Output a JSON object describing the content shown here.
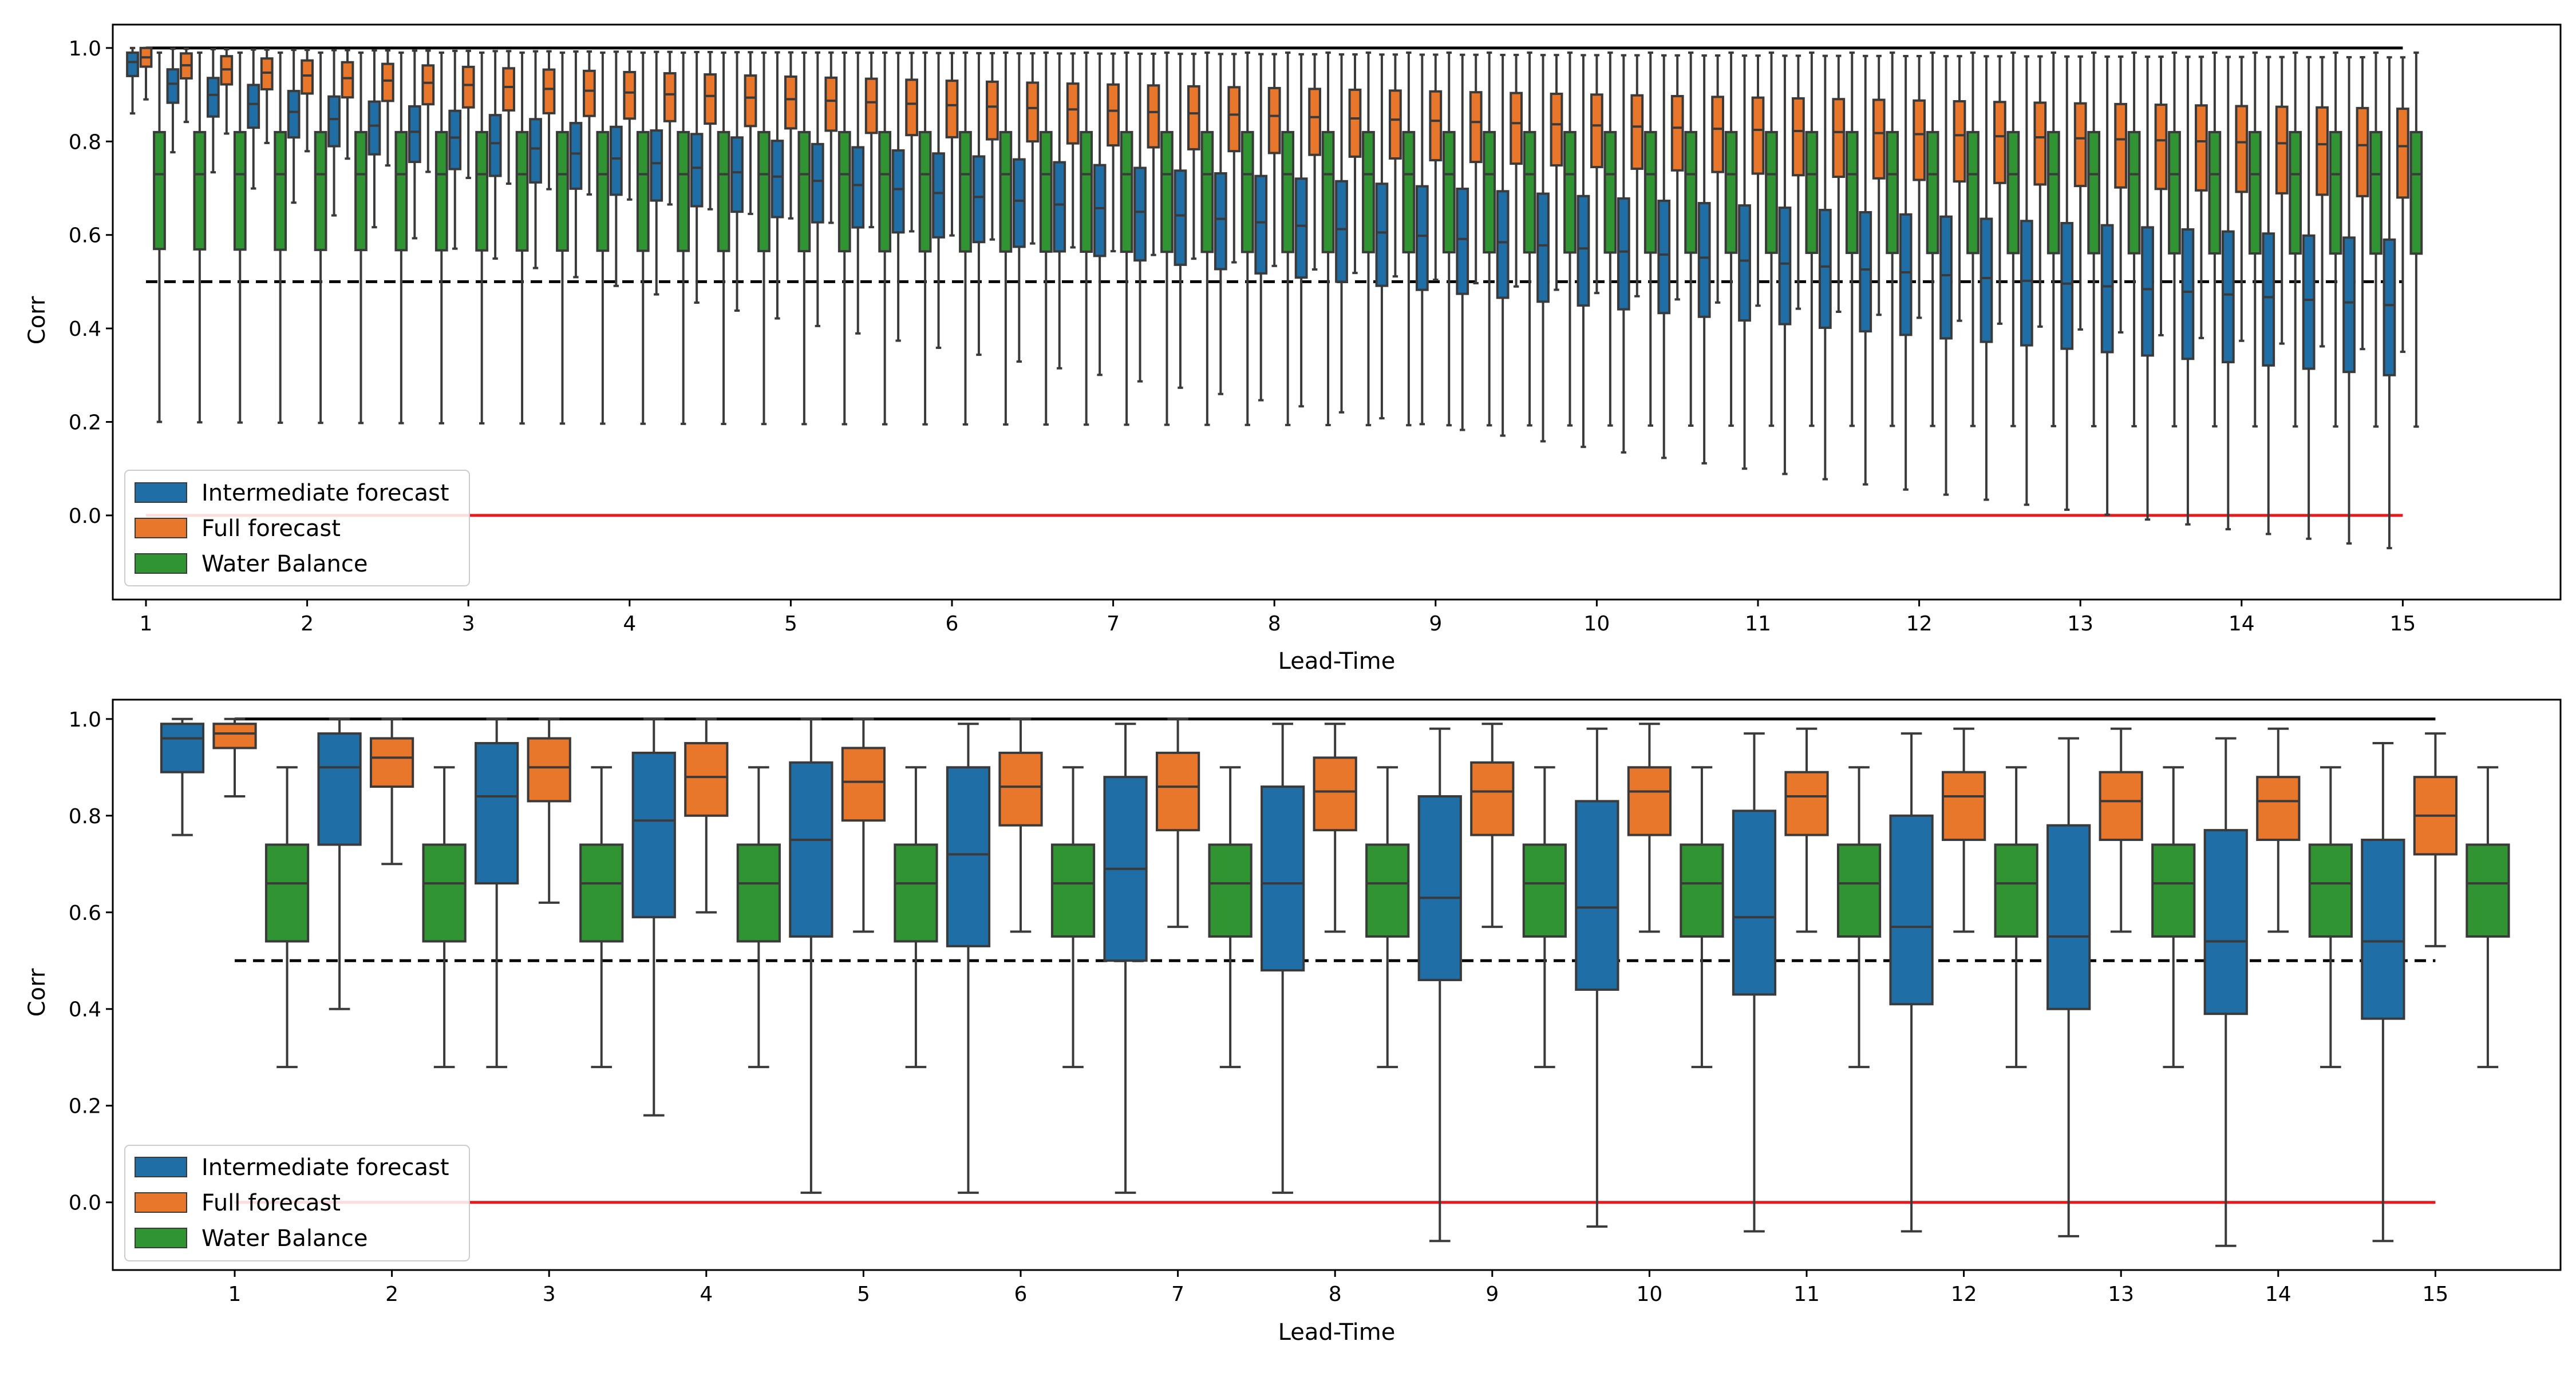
{
  "colors": {
    "intermediate": "#1f6ea6",
    "full": "#e8762b",
    "water": "#2f9431",
    "reference_line": "#000000",
    "zero_line": "#e8191b",
    "box_edge": "#3a3a3a"
  },
  "chart_data": [
    {
      "type": "box",
      "xlabel": "Lead-Time",
      "ylabel": "Corr",
      "ylim": [
        -0.18,
        1.05
      ],
      "yticks": [
        "0.0",
        "0.2",
        "0.4",
        "0.6",
        "0.8",
        "1.0"
      ],
      "xtick_labels": [
        "1",
        "2",
        "3",
        "4",
        "5",
        "6",
        "7",
        "8",
        "9",
        "10",
        "11",
        "12",
        "13",
        "14",
        "15"
      ],
      "groups_per_lead_time": 4,
      "n_groups": 57,
      "reference_lines": {
        "upper": 1.0,
        "dashed": 0.5,
        "zero": 0.0
      },
      "legend": {
        "placement": "lower-left",
        "entries": [
          "Intermediate forecast",
          "Full forecast",
          "Water Balance"
        ]
      },
      "series": [
        {
          "name": "Intermediate forecast",
          "key": "intermediate",
          "q1_trend": [
            0.94,
            0.3
          ],
          "median_trend": [
            0.97,
            0.45
          ],
          "q3_trend": [
            0.99,
            0.59
          ],
          "lower_whisker_trend": [
            0.86,
            -0.07
          ],
          "upper_whisker_trend": [
            1.0,
            0.98
          ]
        },
        {
          "name": "Full forecast",
          "key": "full",
          "q1_trend": [
            0.96,
            0.68
          ],
          "median_trend": [
            0.98,
            0.79
          ],
          "q3_trend": [
            1.0,
            0.87
          ],
          "lower_whisker_trend": [
            0.89,
            0.35
          ],
          "upper_whisker_trend": [
            1.0,
            0.98
          ]
        },
        {
          "name": "Water Balance",
          "key": "water",
          "q1_trend": [
            0.57,
            0.56
          ],
          "median_trend": [
            0.73,
            0.73
          ],
          "q3_trend": [
            0.82,
            0.82
          ],
          "lower_whisker_trend": [
            0.2,
            0.19
          ],
          "upper_whisker_trend": [
            0.99,
            0.99
          ]
        }
      ]
    },
    {
      "type": "box",
      "xlabel": "Lead-Time",
      "ylabel": "Corr",
      "ylim": [
        -0.14,
        1.04
      ],
      "yticks": [
        "0.0",
        "0.2",
        "0.4",
        "0.6",
        "0.8",
        "1.0"
      ],
      "categories": [
        "1",
        "2",
        "3",
        "4",
        "5",
        "6",
        "7",
        "8",
        "9",
        "10",
        "11",
        "12",
        "13",
        "14",
        "15"
      ],
      "reference_lines": {
        "upper": 1.0,
        "dashed": 0.5,
        "zero": 0.0
      },
      "legend": {
        "placement": "lower-left",
        "entries": [
          "Intermediate forecast",
          "Full forecast",
          "Water Balance"
        ]
      },
      "series": [
        {
          "name": "Intermediate forecast",
          "key": "intermediate",
          "whislo": [
            0.76,
            0.4,
            0.28,
            0.18,
            0.02,
            0.02,
            0.02,
            0.02,
            -0.08,
            -0.05,
            -0.06,
            -0.06,
            -0.07,
            -0.09,
            -0.08
          ],
          "q1": [
            0.89,
            0.74,
            0.66,
            0.59,
            0.55,
            0.53,
            0.5,
            0.48,
            0.46,
            0.44,
            0.43,
            0.41,
            0.4,
            0.39,
            0.38
          ],
          "med": [
            0.96,
            0.9,
            0.84,
            0.79,
            0.75,
            0.72,
            0.69,
            0.66,
            0.63,
            0.61,
            0.59,
            0.57,
            0.55,
            0.54,
            0.54
          ],
          "q3": [
            0.99,
            0.97,
            0.95,
            0.93,
            0.91,
            0.9,
            0.88,
            0.86,
            0.84,
            0.83,
            0.81,
            0.8,
            0.78,
            0.77,
            0.75
          ],
          "whishi": [
            1.0,
            1.0,
            1.0,
            1.0,
            1.0,
            0.99,
            0.99,
            0.99,
            0.98,
            0.98,
            0.97,
            0.97,
            0.96,
            0.96,
            0.95
          ]
        },
        {
          "name": "Full forecast",
          "key": "full",
          "whislo": [
            0.84,
            0.7,
            0.62,
            0.6,
            0.56,
            0.56,
            0.57,
            0.56,
            0.57,
            0.56,
            0.56,
            0.56,
            0.56,
            0.56,
            0.53
          ],
          "q1": [
            0.94,
            0.86,
            0.83,
            0.8,
            0.79,
            0.78,
            0.77,
            0.77,
            0.76,
            0.76,
            0.76,
            0.75,
            0.75,
            0.75,
            0.72
          ],
          "med": [
            0.97,
            0.92,
            0.9,
            0.88,
            0.87,
            0.86,
            0.86,
            0.85,
            0.85,
            0.85,
            0.84,
            0.84,
            0.83,
            0.83,
            0.8
          ],
          "q3": [
            0.99,
            0.96,
            0.96,
            0.95,
            0.94,
            0.93,
            0.93,
            0.92,
            0.91,
            0.9,
            0.89,
            0.89,
            0.89,
            0.88,
            0.88
          ],
          "whishi": [
            1.0,
            1.0,
            1.0,
            1.0,
            1.0,
            1.0,
            1.0,
            0.99,
            0.99,
            0.99,
            0.98,
            0.98,
            0.98,
            0.98,
            0.97
          ]
        },
        {
          "name": "Water Balance",
          "key": "water",
          "whislo": [
            0.28,
            0.28,
            0.28,
            0.28,
            0.28,
            0.28,
            0.28,
            0.28,
            0.28,
            0.28,
            0.28,
            0.28,
            0.28,
            0.28,
            0.28
          ],
          "q1": [
            0.54,
            0.54,
            0.54,
            0.54,
            0.54,
            0.55,
            0.55,
            0.55,
            0.55,
            0.55,
            0.55,
            0.55,
            0.55,
            0.55,
            0.55
          ],
          "med": [
            0.66,
            0.66,
            0.66,
            0.66,
            0.66,
            0.66,
            0.66,
            0.66,
            0.66,
            0.66,
            0.66,
            0.66,
            0.66,
            0.66,
            0.66
          ],
          "q3": [
            0.74,
            0.74,
            0.74,
            0.74,
            0.74,
            0.74,
            0.74,
            0.74,
            0.74,
            0.74,
            0.74,
            0.74,
            0.74,
            0.74,
            0.74
          ],
          "whishi": [
            0.9,
            0.9,
            0.9,
            0.9,
            0.9,
            0.9,
            0.9,
            0.9,
            0.9,
            0.9,
            0.9,
            0.9,
            0.9,
            0.9,
            0.9
          ]
        }
      ]
    }
  ]
}
